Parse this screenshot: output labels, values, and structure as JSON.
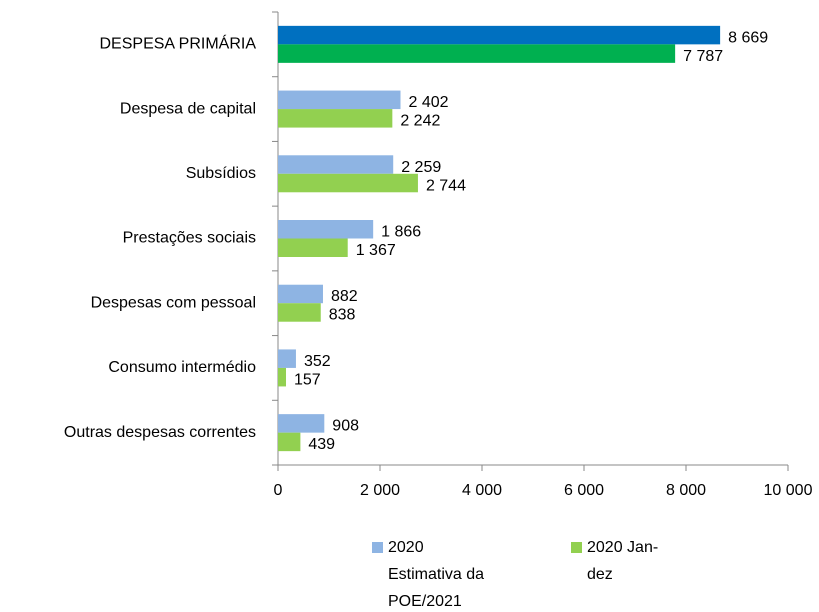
{
  "chart_data": {
    "type": "hbar",
    "categories": [
      "DESPESA PRIMÁRIA",
      "Despesa de capital",
      "Subsídios",
      "Prestações sociais",
      "Despesas com pessoal",
      "Consumo intermédio",
      "Outras despesas correntes"
    ],
    "series": [
      {
        "name": "2020 Estimativa da POE/2021",
        "color": "#8eb4e3",
        "colors": [
          "#0070c0",
          "#8eb4e3",
          "#8eb4e3",
          "#8eb4e3",
          "#8eb4e3",
          "#8eb4e3",
          "#8eb4e3"
        ],
        "values": [
          8669,
          2402,
          2259,
          1866,
          882,
          352,
          908
        ],
        "value_labels": [
          "8 669",
          "2 402",
          "2 259",
          "1 866",
          "882",
          "352",
          "908"
        ]
      },
      {
        "name": "2020 Jan-dez",
        "color": "#92d050",
        "colors": [
          "#00b050",
          "#92d050",
          "#92d050",
          "#92d050",
          "#92d050",
          "#92d050",
          "#92d050"
        ],
        "values": [
          7787,
          2242,
          2744,
          1367,
          838,
          157,
          439
        ],
        "value_labels": [
          "7 787",
          "2 242",
          "2 744",
          "1 367",
          "838",
          "157",
          "439"
        ]
      }
    ],
    "xlim": [
      0,
      10000
    ],
    "xticks": [
      0,
      {
        "value": 2000,
        "label": "2 000"
      },
      {
        "value": 4000,
        "label": "4 000"
      },
      {
        "value": 6000,
        "label": "6 000"
      },
      {
        "value": 8000,
        "label": "8 000"
      },
      {
        "value": 10000,
        "label": "10 000"
      }
    ],
    "legend": "bottom"
  }
}
